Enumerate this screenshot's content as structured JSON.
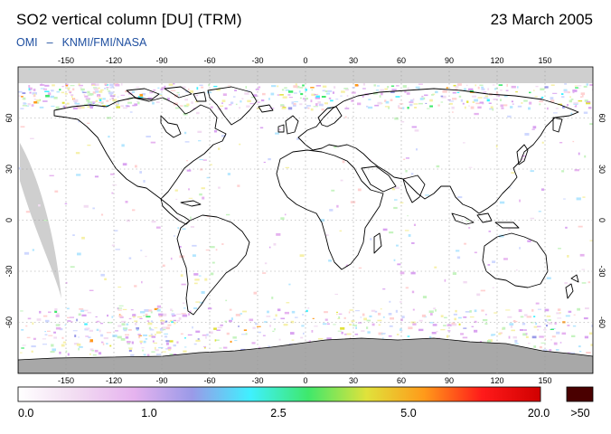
{
  "header": {
    "title": "SO2 vertical column [DU] (TRM)",
    "date": "23 March 2005",
    "credit_instrument": "OMI",
    "credit_dash": "–",
    "credit_agencies": "KNMI/FMI/NASA"
  },
  "map": {
    "projection": "equirectangular",
    "lon_ticks": [
      "-150",
      "-120",
      "-90",
      "-60",
      "-30",
      "0",
      "30",
      "60",
      "90",
      "120",
      "150"
    ],
    "lat_ticks": [
      "60",
      "30",
      "0",
      "-30",
      "-60"
    ],
    "background_color": "#ffffff",
    "missing_data_color": "#cfcfcf",
    "antarctic_fill_color": "#a8a8a8",
    "coastline_color": "#000000"
  },
  "colorbar": {
    "labels": [
      "0.0",
      "1.0",
      "2.5",
      "5.0",
      "20.0"
    ],
    "overflow_label": ">50",
    "overflow_color": "#4a0000",
    "gradient_stops": [
      "#ffffff",
      "#f2dcf2",
      "#e6b3ef",
      "#9a9ae8",
      "#3ff0ff",
      "#3fe86b",
      "#e0e23b",
      "#ff9a1a",
      "#ff1a1a",
      "#d00000"
    ]
  }
}
